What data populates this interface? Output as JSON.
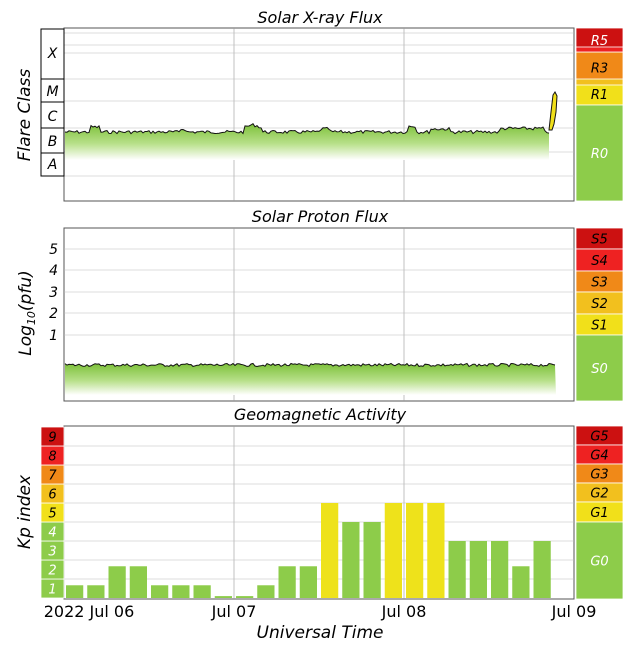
{
  "chart_data": [
    {
      "type": "area",
      "title": "Solar X-ray Flux",
      "ylabel": "Flare Class",
      "classes": [
        "X",
        "M",
        "C",
        "B",
        "A"
      ],
      "log_scale": true,
      "scale_labels": [
        "R5",
        "R3",
        "R1",
        "R0"
      ],
      "baseline_class": "B4",
      "final_class": "M1",
      "grid": true
    },
    {
      "type": "area",
      "title": "Solar Proton Flux",
      "ylabel": "Log10(pfu)",
      "yticks": [
        "5",
        "4",
        "3",
        "2",
        "1"
      ],
      "ylim": [
        -1.8,
        6
      ],
      "scale_labels": [
        "S5",
        "S4",
        "S3",
        "S2",
        "S1",
        "S0"
      ],
      "baseline_log_pfu": -0.8,
      "grid": true
    },
    {
      "type": "bar",
      "title": "Geomagnetic Activity",
      "ylabel": "Kp index",
      "yticks": [
        "9",
        "8",
        "7",
        "6",
        "5",
        "4",
        "3",
        "2",
        "1"
      ],
      "ylim": [
        0,
        9
      ],
      "scale_labels": [
        "G5",
        "G4",
        "G3",
        "G2",
        "G1",
        "G0"
      ],
      "xlabel": "Universal Time",
      "x_tick_labels": [
        "2022 Jul 06",
        "Jul 07",
        "Jul 08",
        "Jul 09"
      ],
      "values": [
        0.67,
        0.67,
        1.67,
        1.67,
        0.67,
        0.67,
        0.67,
        0.1,
        0.1,
        0.67,
        1.67,
        1.67,
        5,
        4,
        4,
        5,
        5,
        5,
        3,
        3,
        3,
        1.67,
        3
      ],
      "colors": {
        "quiet": "#8dcc4a",
        "storm": "#eee21b"
      },
      "grid": true
    }
  ],
  "colors": {
    "green": "#8dcc4a",
    "yellow": "#f1e01a",
    "orange_light": "#f2c01e",
    "orange": "#f08918",
    "red": "#ee2222",
    "dark_red": "#cc1111"
  }
}
